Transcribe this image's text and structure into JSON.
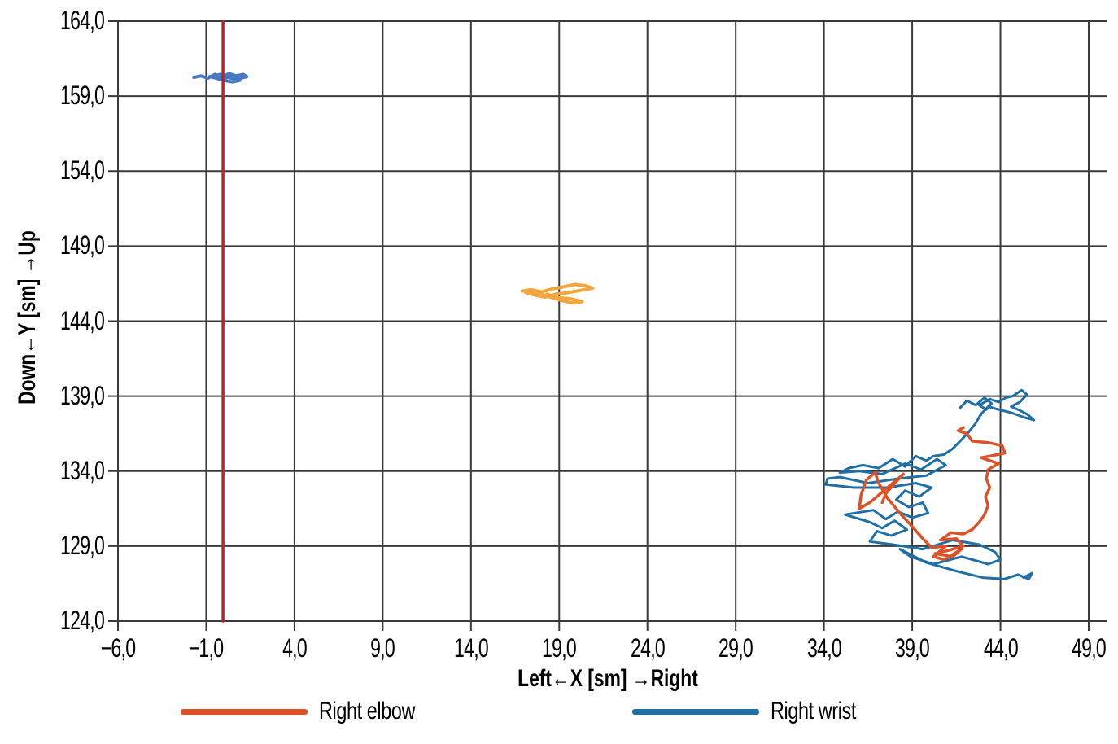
{
  "figure": {
    "background": "#ffffff"
  },
  "chart_data": {
    "type": "line",
    "title": "",
    "xlabel": "Left←X [sm] →Right",
    "ylabel": "Down←Y [sm] →Up",
    "xlim": [
      -6.0,
      49.0
    ],
    "ylim": [
      124.0,
      164.0
    ],
    "x_ticks": [
      -6,
      -1,
      4,
      9,
      14,
      19,
      24,
      29,
      34,
      39,
      44,
      49
    ],
    "x_tick_labels": [
      "−6,0",
      "−1,0",
      "4,0",
      "9,0",
      "14,0",
      "19,0",
      "24,0",
      "29,0",
      "34,0",
      "39,0",
      "44,0",
      "49,0"
    ],
    "y_ticks": [
      124,
      129,
      134,
      139,
      144,
      149,
      154,
      159,
      164
    ],
    "y_tick_labels": [
      "124,0",
      "129,0",
      "134,0",
      "139,0",
      "144,0",
      "149,0",
      "154,0",
      "159,0",
      "164,0"
    ],
    "grid": true,
    "grid_color": "#3a3a3a",
    "tick_label_color": "#000000",
    "legend_position": "bottom",
    "legend": [
      {
        "label": "Right elbow",
        "color": "#dc5226"
      },
      {
        "label": "Right wrist",
        "color": "#1f6fa6"
      }
    ],
    "series": [
      {
        "name": "right-wrist-trajectory",
        "label": "Right wrist",
        "color": "#1f6fa6",
        "width": 3,
        "points": [
          [
            41.7,
            138.2
          ],
          [
            42.1,
            138.7
          ],
          [
            42.6,
            138.4
          ],
          [
            43.1,
            138.9
          ],
          [
            43.5,
            138.5
          ],
          [
            43.2,
            138.1
          ],
          [
            42.8,
            138.4
          ],
          [
            43.4,
            138.8
          ],
          [
            43.9,
            138.6
          ],
          [
            44.3,
            138.9
          ],
          [
            44.7,
            139.0
          ],
          [
            45.2,
            139.4
          ],
          [
            45.5,
            139.1
          ],
          [
            45.1,
            138.6
          ],
          [
            44.6,
            138.3
          ],
          [
            45.0,
            138.1
          ],
          [
            45.5,
            137.8
          ],
          [
            45.9,
            137.4
          ],
          [
            45.3,
            137.6
          ],
          [
            44.6,
            137.9
          ],
          [
            43.9,
            138.1
          ],
          [
            43.3,
            138.3
          ],
          [
            42.9,
            137.8
          ],
          [
            42.6,
            137.2
          ],
          [
            42.2,
            136.6
          ],
          [
            41.8,
            136.1
          ],
          [
            41.3,
            135.5
          ],
          [
            40.8,
            135.1
          ],
          [
            40.2,
            135.0
          ],
          [
            39.8,
            134.7
          ],
          [
            39.2,
            135.0
          ],
          [
            38.6,
            134.3
          ],
          [
            37.9,
            134.8
          ],
          [
            37.1,
            134.2
          ],
          [
            36.2,
            134.4
          ],
          [
            35.4,
            134.2
          ],
          [
            34.9,
            133.9
          ],
          [
            36.0,
            134.0
          ],
          [
            37.3,
            133.8
          ],
          [
            38.6,
            134.5
          ],
          [
            39.5,
            134.1
          ],
          [
            40.4,
            134.8
          ],
          [
            40.9,
            134.4
          ],
          [
            39.8,
            133.7
          ],
          [
            38.2,
            133.5
          ],
          [
            36.5,
            133.2
          ],
          [
            34.9,
            133.6
          ],
          [
            34.2,
            133.5
          ],
          [
            34.1,
            133.1
          ],
          [
            35.7,
            132.9
          ],
          [
            37.6,
            132.9
          ],
          [
            39.2,
            133.2
          ],
          [
            40.1,
            132.9
          ],
          [
            39.4,
            132.3
          ],
          [
            38.6,
            132.7
          ],
          [
            38.1,
            132.1
          ],
          [
            38.8,
            131.6
          ],
          [
            39.6,
            131.9
          ],
          [
            39.9,
            131.2
          ],
          [
            39.0,
            130.9
          ],
          [
            38.2,
            131.3
          ],
          [
            37.5,
            130.8
          ],
          [
            36.8,
            131.4
          ],
          [
            35.2,
            131.1
          ],
          [
            36.6,
            130.6
          ],
          [
            37.3,
            130.2
          ],
          [
            38.0,
            130.7
          ],
          [
            38.7,
            130.1
          ],
          [
            37.8,
            129.7
          ],
          [
            37.0,
            130.0
          ],
          [
            36.6,
            129.3
          ],
          [
            37.9,
            129.1
          ],
          [
            39.6,
            128.8
          ],
          [
            41.3,
            129.4
          ],
          [
            42.8,
            129.1
          ],
          [
            43.7,
            128.6
          ],
          [
            44.0,
            128.1
          ],
          [
            43.3,
            127.8
          ],
          [
            41.8,
            128.3
          ],
          [
            40.2,
            127.8
          ],
          [
            38.9,
            128.3
          ],
          [
            38.3,
            128.8
          ],
          [
            39.8,
            127.9
          ],
          [
            41.6,
            127.3
          ],
          [
            43.0,
            126.9
          ],
          [
            44.2,
            126.8
          ],
          [
            45.0,
            127.1
          ],
          [
            45.6,
            126.8
          ],
          [
            45.8,
            127.2
          ],
          [
            45.3,
            126.9
          ]
        ]
      },
      {
        "name": "right-elbow-trajectory",
        "label": "Right elbow",
        "color": "#dc5226",
        "width": 3.5,
        "points": [
          [
            41.9,
            136.9
          ],
          [
            41.6,
            136.7
          ],
          [
            42.1,
            136.5
          ],
          [
            42.4,
            136.0
          ],
          [
            43.3,
            135.9
          ],
          [
            44.1,
            135.7
          ],
          [
            44.25,
            135.2
          ],
          [
            43.4,
            135.0
          ],
          [
            42.9,
            134.9
          ],
          [
            43.9,
            134.5
          ],
          [
            43.3,
            134.1
          ],
          [
            43.2,
            133.5
          ],
          [
            43.4,
            132.9
          ],
          [
            43.15,
            132.3
          ],
          [
            43.3,
            131.7
          ],
          [
            43.1,
            131.1
          ],
          [
            42.8,
            130.6
          ],
          [
            42.4,
            130.1
          ],
          [
            41.9,
            129.8
          ],
          [
            41.2,
            129.9
          ],
          [
            40.6,
            129.4
          ],
          [
            41.5,
            129.5
          ],
          [
            41.9,
            129.0
          ],
          [
            41.0,
            128.7
          ],
          [
            40.3,
            128.5
          ],
          [
            41.3,
            128.3
          ],
          [
            41.8,
            128.8
          ],
          [
            40.8,
            128.1
          ],
          [
            40.2,
            128.3
          ],
          [
            40.9,
            129.0
          ],
          [
            40.1,
            128.9
          ],
          [
            39.6,
            129.5
          ],
          [
            39.0,
            130.3
          ],
          [
            38.3,
            131.2
          ],
          [
            37.6,
            132.2
          ],
          [
            37.1,
            133.2
          ],
          [
            36.9,
            133.9
          ],
          [
            36.4,
            133.4
          ],
          [
            36.1,
            132.4
          ],
          [
            36.0,
            131.5
          ],
          [
            36.6,
            131.9
          ],
          [
            37.2,
            132.5
          ],
          [
            37.9,
            133.2
          ],
          [
            38.5,
            133.8
          ],
          [
            38.1,
            133.3
          ],
          [
            37.5,
            132.5
          ],
          [
            37.3,
            131.9
          ]
        ]
      },
      {
        "name": "unlabeled-yellow-cluster",
        "label": "",
        "color": "#f3a63c",
        "width": 4,
        "points": [
          [
            16.9,
            146.0
          ],
          [
            17.4,
            146.1
          ],
          [
            18.0,
            145.95
          ],
          [
            18.6,
            146.15
          ],
          [
            19.3,
            146.3
          ],
          [
            19.9,
            146.45
          ],
          [
            20.5,
            146.35
          ],
          [
            20.9,
            146.2
          ],
          [
            20.2,
            146.05
          ],
          [
            19.5,
            145.9
          ],
          [
            18.8,
            145.8
          ],
          [
            18.2,
            145.6
          ],
          [
            17.6,
            145.75
          ],
          [
            17.1,
            145.9
          ],
          [
            17.8,
            145.85
          ],
          [
            18.5,
            145.6
          ],
          [
            19.2,
            145.35
          ],
          [
            19.8,
            145.2
          ],
          [
            20.3,
            145.3
          ],
          [
            19.6,
            145.5
          ],
          [
            18.9,
            145.55
          ],
          [
            18.3,
            145.8
          ]
        ]
      },
      {
        "name": "right-wrist-upper-cluster",
        "label": "",
        "color": "#4679c4",
        "width": 4,
        "points": [
          [
            -1.7,
            160.25
          ],
          [
            -1.3,
            160.35
          ],
          [
            -0.9,
            160.2
          ],
          [
            -0.5,
            160.45
          ],
          [
            -0.1,
            160.3
          ],
          [
            0.3,
            160.5
          ],
          [
            0.7,
            160.35
          ],
          [
            1.1,
            160.45
          ],
          [
            1.3,
            160.3
          ],
          [
            0.8,
            160.15
          ],
          [
            0.3,
            160.3
          ],
          [
            -0.2,
            160.1
          ],
          [
            -0.6,
            160.3
          ],
          [
            -0.2,
            160.45
          ],
          [
            0.4,
            160.2
          ],
          [
            0.9,
            160.05
          ],
          [
            0.5,
            159.95
          ],
          [
            0.0,
            160.05
          ],
          [
            -0.4,
            160.2
          ],
          [
            -0.8,
            160.3
          ]
        ]
      },
      {
        "name": "vertical-red-line",
        "label": "",
        "color": "#b2262a",
        "width": 3.5,
        "points": [
          [
            -0.05,
            124.0
          ],
          [
            -0.05,
            164.0
          ]
        ]
      }
    ]
  }
}
